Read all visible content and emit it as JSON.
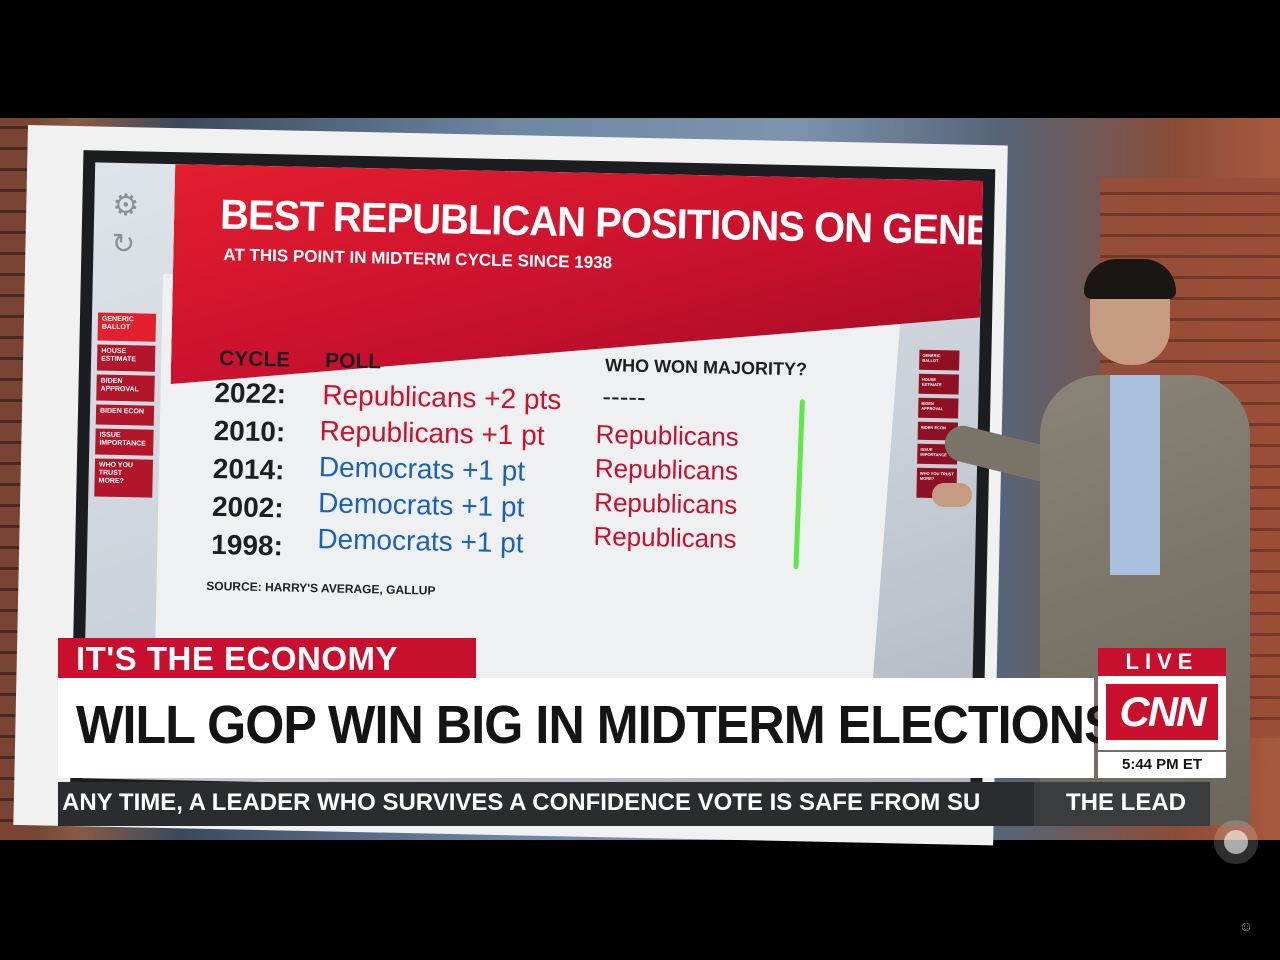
{
  "board": {
    "title": "BEST REPUBLICAN POSITIONS ON GENERIC BALLOT",
    "subtitle": "AT THIS POINT IN MIDTERM CYCLE SINCE 1938",
    "headers": {
      "cycle": "CYCLE",
      "poll": "POLL",
      "won": "WHO WON MAJORITY?"
    },
    "rows": [
      {
        "cycle": "2022:",
        "poll": "Republicans +2 pts",
        "party": "rep",
        "won": "-----"
      },
      {
        "cycle": "2010:",
        "poll": "Republicans +1 pt",
        "party": "rep",
        "won": "Republicans"
      },
      {
        "cycle": "2014:",
        "poll": "Democrats +1 pt",
        "party": "dem",
        "won": "Republicans"
      },
      {
        "cycle": "2002:",
        "poll": "Democrats +1 pt",
        "party": "dem",
        "won": "Republicans"
      },
      {
        "cycle": "1998:",
        "poll": "Democrats +1 pt",
        "party": "dem",
        "won": "Republicans"
      }
    ],
    "source": "SOURCE: HARRY'S AVERAGE, GALLUP",
    "left_nav": [
      "GENERIC BALLOT",
      "HOUSE ESTIMATE",
      "BIDEN APPROVAL",
      "BIDEN ECON",
      "ISSUE IMPORTANCE",
      "WHO YOU TRUST MORE?"
    ],
    "right_nav": [
      "GENERIC BALLOT",
      "HOUSE ESTIMATE",
      "BIDEN APPROVAL",
      "BIDEN ECON",
      "ISSUE IMPORTANCE",
      "WHO YOU TRUST MORE?"
    ]
  },
  "lower_third": {
    "kicker": "IT'S THE ECONOMY",
    "headline": "WILL GOP WIN BIG IN MIDTERM ELECTIONS?",
    "live": "LIVE",
    "network": "CNN",
    "time": "5:44 PM ET",
    "ticker": "ANY TIME, A LEADER WHO SURVIVES A CONFIDENCE VOTE IS SAFE FROM SU",
    "show": "THE LEAD"
  },
  "colors": {
    "cnn_red": "#c8102e",
    "republican": "#d0102b",
    "democrat": "#1b61b5",
    "check_line": "#5ee84a"
  },
  "icons": {
    "settings": "gear-icon",
    "refresh": "refresh-icon"
  }
}
